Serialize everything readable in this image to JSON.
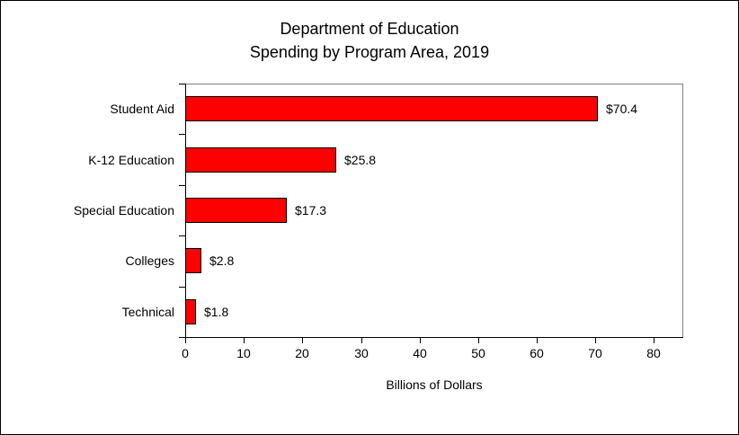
{
  "chart_data": {
    "type": "bar",
    "orientation": "horizontal",
    "title_line1": "Department of Education",
    "title_line2": "Spending by Program Area, 2019",
    "categories": [
      "Student Aid",
      "K-12 Education",
      "Special Education",
      "Colleges",
      "Technical"
    ],
    "values": [
      70.4,
      25.8,
      17.3,
      2.8,
      1.8
    ],
    "data_labels": [
      "$70.4",
      "$25.8",
      "$17.3",
      "$2.8",
      "$1.8"
    ],
    "xlabel": "Billions of Dollars",
    "xlim": [
      0,
      85
    ],
    "xticks": [
      0,
      10,
      20,
      30,
      40,
      50,
      60,
      70,
      80
    ],
    "grid": false,
    "legend": false,
    "colors": {
      "bar_fill": "#FF0000",
      "bar_border": "#000000",
      "axis": "#000000",
      "plot_border": "#808080",
      "text": "#000000",
      "background": "#FFFFFF"
    }
  }
}
